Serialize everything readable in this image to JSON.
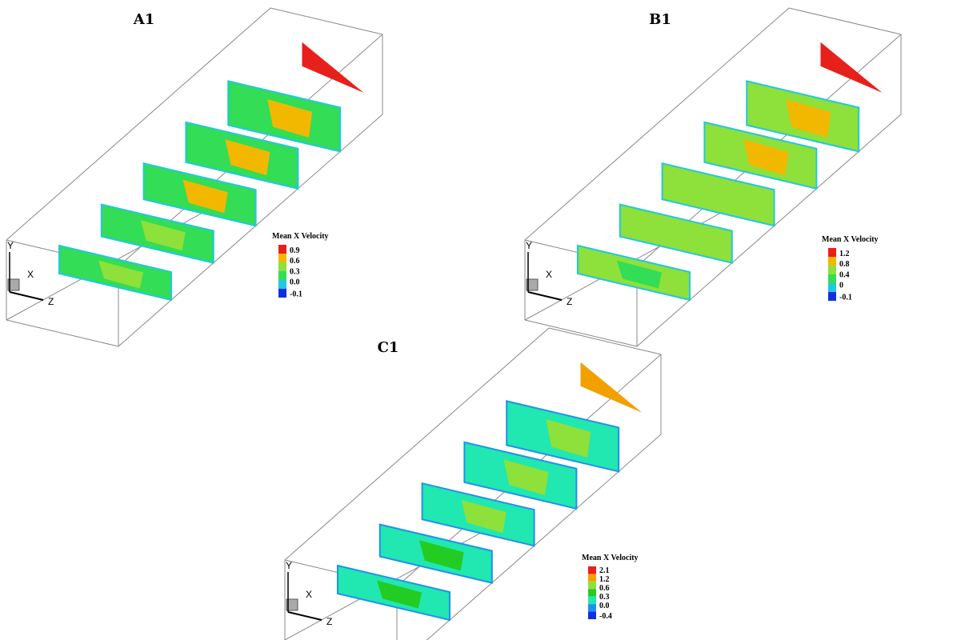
{
  "panels": [
    {
      "label": "A1",
      "axes": {
        "y": "Y",
        "x": "X",
        "z": "Z"
      },
      "legend": {
        "title": "Mean X Velocity",
        "labels": [
          "0.9",
          "0.6",
          "0.3",
          "0.0",
          "-0.1"
        ],
        "colors": [
          "#e8201c",
          "#f2b800",
          "#8ee03a",
          "#33dd55",
          "#20c8e0",
          "#1030e0"
        ]
      }
    },
    {
      "label": "B1",
      "axes": {
        "y": "Y",
        "x": "X",
        "z": "Z"
      },
      "legend": {
        "title": "Mean X Velocity",
        "labels": [
          "1.2",
          "0.8",
          "0.4",
          "0",
          "-0.1"
        ],
        "colors": [
          "#e8201c",
          "#f2b800",
          "#8ee03a",
          "#33dd55",
          "#20c8e0",
          "#1030e0"
        ]
      }
    },
    {
      "label": "C1",
      "axes": {
        "y": "Y",
        "x": "X",
        "z": "Z"
      },
      "legend": {
        "title": "Mean X Velocity",
        "labels": [
          "2.1",
          "1.2",
          "0.6",
          "0.3",
          "0.0",
          "-0.4"
        ],
        "colors": [
          "#e8201c",
          "#f2a000",
          "#8ee03a",
          "#22cc22",
          "#20e8b0",
          "#2090f0",
          "#1030e0"
        ]
      }
    }
  ]
}
